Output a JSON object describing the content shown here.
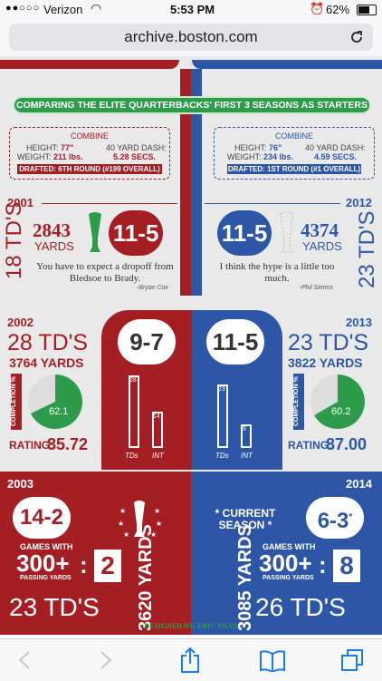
{
  "status": {
    "carrier": "Verizon",
    "time": "5:53 PM",
    "battery": "62%"
  },
  "browser": {
    "url": "archive.boston.com"
  },
  "banner": "COMPARING THE ELITE QUARTERBACKS' FIRST 3 SEASONS AS STARTERS",
  "brady": {
    "combine_title": "COMBINE",
    "height_label": "HEIGHT:",
    "height": "77\"",
    "weight_label": "WEIGHT:",
    "weight": "211 lbs.",
    "dash_label": "40 YARD DASH:",
    "dash": "5.28 SECS.",
    "drafted": "DRAFTED: 6TH ROUND (#199 OVERALL)",
    "y1": {
      "year": "2001",
      "tds": "18 TD'S",
      "yards": "2843",
      "yards_label": "YARDS",
      "record": "11-5",
      "quote": "You have to expect a dropoff from Bledsoe to Brady.",
      "author": "-Bryan Cox"
    },
    "y2": {
      "year": "2002",
      "tds": "28 TD'S",
      "yards": "3764",
      "yards_label": "YARDS",
      "record": "9-7",
      "completion_label": "COMPLETION %",
      "completion": "62.1",
      "rating_label": "RATING:",
      "rating": "85.72",
      "bar_td": "28",
      "bar_int": "14",
      "td_label": "TDs",
      "int_label": "INT"
    },
    "y3": {
      "year": "2003",
      "record": "14-2",
      "games_label": "GAMES WITH",
      "games_300": "300+",
      "passing": "PASSING YARDS",
      "games_count": "2",
      "tds": "23 TD'S",
      "yards": "3620",
      "yards_label": "YARDS"
    }
  },
  "luck": {
    "combine_title": "COMBINE",
    "height_label": "HEIGHT:",
    "height": "76\"",
    "weight_label": "WEIGHT:",
    "weight": "234 lbs.",
    "dash_label": "40 YARD DASH:",
    "dash": "4.59 SECS.",
    "drafted": "DRAFTED: 1ST ROUND (#1 OVERALL)",
    "y1": {
      "year": "2012",
      "tds": "23 TD'S",
      "yards": "4374",
      "yards_label": "YARDS",
      "record": "11-5",
      "quote": "I think the hype is a little too much.",
      "author": "-Phil Simms"
    },
    "y2": {
      "year": "2013",
      "tds": "23 TD'S",
      "yards": "3822",
      "yards_label": "YARDS",
      "record": "11-5",
      "completion_label": "COMPLETION %",
      "completion": "60.2",
      "rating_label": "RATING:",
      "rating": "87.00",
      "bar_td": "23",
      "bar_int": "9",
      "td_label": "TDs",
      "int_label": "INT"
    },
    "y3": {
      "year": "2014",
      "current": "CURRENT SEASON",
      "record": "6-3",
      "asterisk": "*",
      "games_label": "GAMES WITH",
      "games_300": "300+",
      "passing": "PASSING YARDS",
      "games_count": "8",
      "tds": "26 TD'S",
      "yards": "3085",
      "yards_label": "YARDS"
    }
  },
  "credit": "DESIGNED BY: ERIC SILVA"
}
